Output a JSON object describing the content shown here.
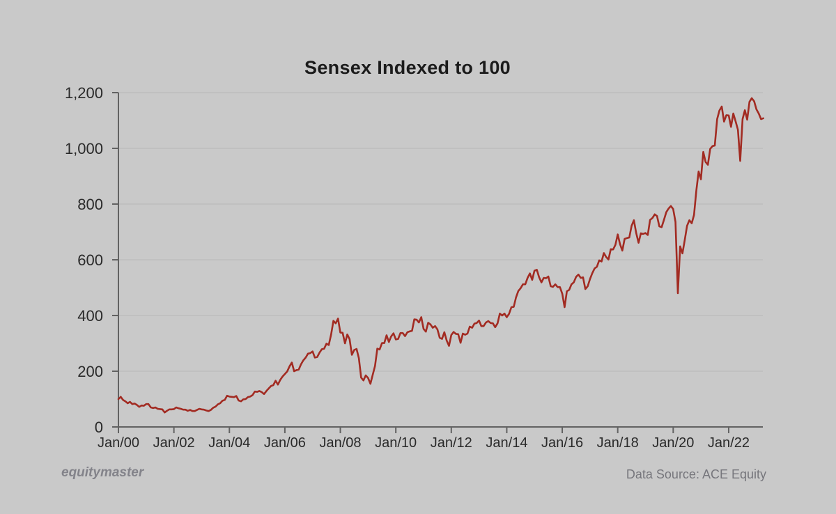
{
  "page": {
    "background": "#c9c9c9"
  },
  "header": {
    "title": "Sensex Indexed to 100"
  },
  "footer": {
    "brand": "equitymaster",
    "data_source": "Data Source: ACE Equity"
  },
  "colors": {
    "background": "#c9c9c9",
    "gridline": "#b6b6b6",
    "axis": "#626262",
    "tick_label": "#2a2a2a",
    "line": "#a22b22"
  },
  "chart_data": {
    "type": "line",
    "title": "Sensex Indexed to 100",
    "xlabel": "",
    "ylabel": "",
    "ylim": [
      0,
      1200
    ],
    "y_ticks": [
      0,
      200,
      400,
      600,
      800,
      1000,
      1200
    ],
    "y_tick_labels": [
      "0",
      "200",
      "400",
      "600",
      "800",
      "1,000",
      "1,200"
    ],
    "x_tick_labels": [
      "Jan/00",
      "Jan/02",
      "Jan/04",
      "Jan/06",
      "Jan/08",
      "Jan/10",
      "Jan/12",
      "Jan/14",
      "Jan/16",
      "Jan/18",
      "Jan/20",
      "Jan/22"
    ],
    "x_tick_interval_months": 24,
    "grid": "horizontal",
    "legend": "none",
    "line_color": "#a22b22",
    "series": [
      {
        "name": "Sensex indexed to 100 (Jan/00 = 100)",
        "start": "Jan/00",
        "end": "Apr/23",
        "interval": "monthly",
        "values": [
          100,
          108,
          97,
          92,
          85,
          90,
          82,
          84,
          79,
          72,
          77,
          76,
          82,
          82,
          70,
          68,
          70,
          65,
          64,
          63,
          52,
          58,
          63,
          63,
          64,
          70,
          67,
          65,
          62,
          62,
          58,
          61,
          57,
          57,
          61,
          65,
          63,
          62,
          59,
          57,
          61,
          69,
          73,
          81,
          85,
          94,
          97,
          112,
          109,
          108,
          107,
          111,
          95,
          92,
          99,
          100,
          107,
          109,
          114,
          127,
          126,
          129,
          125,
          118,
          129,
          138,
          147,
          150,
          166,
          152,
          169,
          181,
          190,
          199,
          217,
          231,
          200,
          204,
          206,
          225,
          239,
          249,
          263,
          265,
          271,
          249,
          251,
          267,
          279,
          281,
          299,
          294,
          332,
          381,
          372,
          389,
          339,
          338,
          300,
          332,
          315,
          259,
          276,
          280,
          247,
          177,
          167,
          185,
          176,
          155,
          187,
          219,
          281,
          278,
          301,
          301,
          329,
          305,
          325,
          336,
          314,
          316,
          337,
          337,
          326,
          340,
          343,
          345,
          386,
          385,
          375,
          394,
          352,
          342,
          374,
          368,
          356,
          362,
          350,
          320,
          316,
          340,
          310,
          291,
          330,
          341,
          334,
          333,
          302,
          335,
          331,
          335,
          360,
          356,
          371,
          373,
          382,
          362,
          362,
          375,
          380,
          373,
          372,
          358,
          372,
          407,
          400,
          407,
          394,
          406,
          430,
          431,
          465,
          488,
          498,
          512,
          512,
          535,
          551,
          528,
          561,
          564,
          537,
          519,
          535,
          534,
          540,
          505,
          503,
          512,
          502,
          502,
          478,
          430,
          487,
          492,
          512,
          519,
          539,
          547,
          535,
          537,
          495,
          505,
          531,
          552,
          569,
          575,
          598,
          594,
          624,
          610,
          601,
          638,
          637,
          654,
          691,
          656,
          633,
          675,
          678,
          680,
          722,
          742,
          696,
          661,
          695,
          693,
          696,
          689,
          743,
          750,
          763,
          757,
          720,
          717,
          743,
          771,
          784,
          793,
          782,
          736,
          480,
          648,
          623,
          671,
          722,
          742,
          731,
          761,
          848,
          917,
          889,
          987,
          951,
          941,
          998,
          1008,
          1010,
          1105,
          1136,
          1150,
          1096,
          1119,
          1118,
          1077,
          1125,
          1097,
          1067,
          955,
          1105,
          1137,
          1103,
          1167,
          1180,
          1169,
          1140,
          1125,
          1105,
          1108
        ]
      }
    ]
  }
}
